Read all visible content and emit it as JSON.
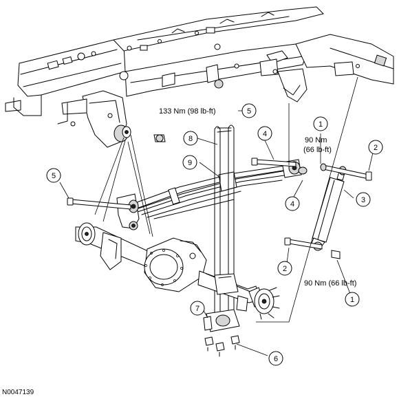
{
  "figure_id": "N0047139",
  "callouts": {
    "c1a": "1",
    "c1b": "1",
    "c2a": "2",
    "c2b": "2",
    "c3": "3",
    "c4a": "4",
    "c4b": "4",
    "c5a": "5",
    "c5b": "5",
    "c6": "6",
    "c7": "7",
    "c8": "8",
    "c9": "9"
  },
  "torque": {
    "t5": "133 Nm (98 lb-ft)",
    "t1_top_nm": "90 Nm",
    "t1_top_lbft": "(66 lb-ft)",
    "t1_bottom": "90 Nm (66 lb-ft)"
  }
}
